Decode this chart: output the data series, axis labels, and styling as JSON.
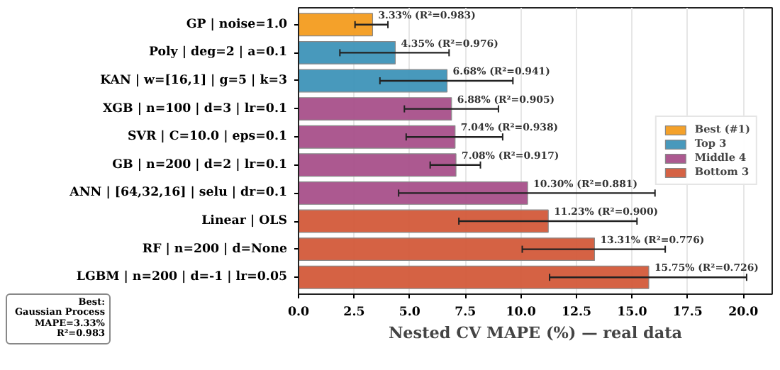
{
  "chart_data": {
    "type": "bar",
    "orientation": "horizontal",
    "xlabel": "Nested CV MAPE (%) — real data",
    "categories": [
      "GP | noise=1.0",
      "Poly | deg=2 | a=0.1",
      "KAN | w=[16,1] | g=5 | k=3",
      "XGB | n=100 | d=3 | lr=0.1",
      "SVR | C=10.0 | eps=0.1",
      "GB | n=200 | d=2 | lr=0.1",
      "ANN | [64,32,16] | selu | dr=0.1",
      "Linear | OLS",
      "RF | n=200 | d=None",
      "LGBM | n=200 | d=-1 | lr=0.05"
    ],
    "series": [
      {
        "name": "Best (#1)",
        "color": "#f39c1f",
        "values": [
          3.33,
          null,
          null,
          null,
          null,
          null,
          null,
          null,
          null,
          null
        ],
        "errors": [
          [
            2.54,
            4.02
          ],
          null,
          null,
          null,
          null,
          null,
          null,
          null,
          null,
          null
        ],
        "value_labels": [
          "3.33%  (R²=0.983)",
          null,
          null,
          null,
          null,
          null,
          null,
          null,
          null,
          null
        ]
      },
      {
        "name": "Top 3",
        "color": "#3e93b8",
        "values": [
          null,
          4.35,
          6.68,
          null,
          null,
          null,
          null,
          null,
          null,
          null
        ],
        "errors": [
          null,
          [
            1.86,
            6.77
          ],
          [
            3.66,
            9.64
          ],
          null,
          null,
          null,
          null,
          null,
          null,
          null
        ],
        "value_labels": [
          null,
          "4.35%  (R²=0.976)",
          "6.68%  (R²=0.941)",
          null,
          null,
          null,
          null,
          null,
          null,
          null
        ]
      },
      {
        "name": "Middle 4",
        "color": "#a8508a",
        "values": [
          null,
          null,
          null,
          6.88,
          7.04,
          7.08,
          10.3,
          null,
          null,
          null
        ],
        "errors": [
          null,
          null,
          null,
          [
            4.76,
            8.99
          ],
          [
            4.84,
            9.18
          ],
          [
            5.92,
            8.18
          ],
          [
            4.5,
            16.03
          ],
          null,
          null,
          null
        ],
        "value_labels": [
          null,
          null,
          null,
          "6.88%  (R²=0.905)",
          "7.04%  (R²=0.938)",
          "7.08%  (R²=0.917)",
          "10.30%  (R²=0.881)",
          null,
          null,
          null
        ]
      },
      {
        "name": "Bottom 3",
        "color": "#d35a3a",
        "values": [
          null,
          null,
          null,
          null,
          null,
          null,
          null,
          11.23,
          13.31,
          15.75
        ],
        "errors": [
          null,
          null,
          null,
          null,
          null,
          null,
          null,
          [
            7.21,
            15.22
          ],
          [
            10.06,
            16.49
          ],
          [
            11.29,
            20.15
          ]
        ],
        "value_labels": [
          null,
          null,
          null,
          null,
          null,
          null,
          null,
          "11.23%  (R²=0.900)",
          "13.31%  (R²=0.776)",
          "15.75%  (R²=0.726)"
        ]
      }
    ],
    "xlim": [
      0,
      21.3
    ],
    "xticks": [
      {
        "value": 0,
        "label": "0.0"
      },
      {
        "value": 2.5,
        "label": "2.5"
      },
      {
        "value": 5,
        "label": "5.0"
      },
      {
        "value": 7.5,
        "label": "7.5"
      },
      {
        "value": 10,
        "label": "10.0"
      },
      {
        "value": 12.5,
        "label": "12.5"
      },
      {
        "value": 15,
        "label": "15.0"
      },
      {
        "value": 17.5,
        "label": "17.5"
      },
      {
        "value": 20,
        "label": "20.0"
      }
    ],
    "grid": "x",
    "legend": "right",
    "annotations": [
      "Best:\nGaussian Process\nMAPE=3.33%\nR²=0.983"
    ]
  }
}
